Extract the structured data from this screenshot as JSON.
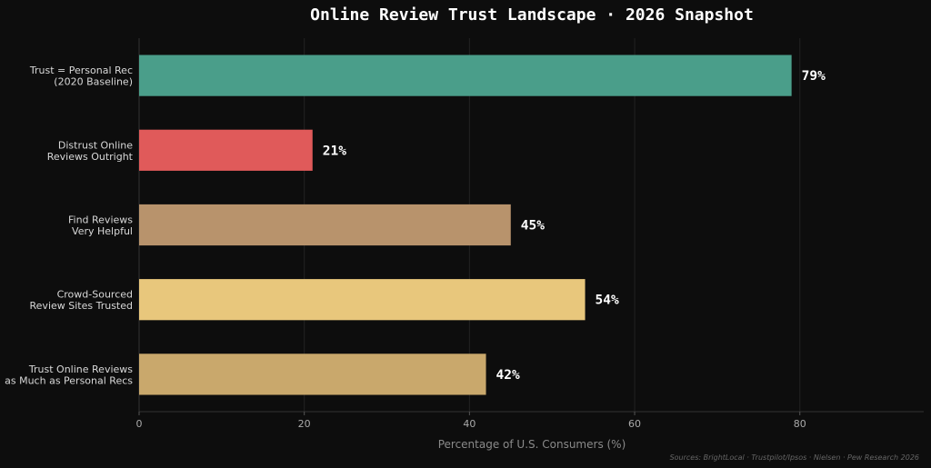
{
  "chart_data": {
    "type": "bar",
    "orientation": "horizontal",
    "title": "Online Review Trust Landscape · 2026 Snapshot",
    "xlabel": "Percentage of U.S. Consumers (%)",
    "ylabel": "",
    "xlim": [
      0,
      95
    ],
    "xticks": [
      "0",
      "20",
      "40",
      "60",
      "80"
    ],
    "grid": "vertical",
    "categories": [
      [
        "Trust = Personal Rec",
        "(2020 Baseline)"
      ],
      [
        "Distrust Online",
        "Reviews Outright"
      ],
      [
        "Find Reviews",
        "Very Helpful"
      ],
      [
        "Crowd-Sourced",
        "Review Sites Trusted"
      ],
      [
        "Trust Online Reviews",
        "as Much as Personal Recs"
      ]
    ],
    "values": [
      79,
      21,
      45,
      54,
      42
    ],
    "value_labels": [
      "79%",
      "21%",
      "45%",
      "54%",
      "42%"
    ],
    "colors": [
      "#4a9e8a",
      "#e05a5a",
      "#b8936c",
      "#e8c77c",
      "#c9a86c"
    ],
    "source": "Sources: BrightLocal · Trustpilot/Ipsos · Nielsen · Pew Research 2026"
  }
}
